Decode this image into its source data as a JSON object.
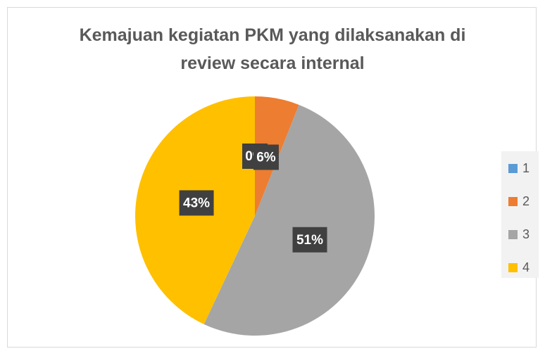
{
  "chart_data": {
    "type": "pie",
    "title": "Kemajuan kegiatan PKM yang dilaksanakan di review secara internal",
    "categories": [
      "1",
      "2",
      "3",
      "4"
    ],
    "values": [
      0,
      6,
      51,
      43
    ],
    "value_labels": [
      "0%",
      "6%",
      "51%",
      "43%"
    ],
    "colors": [
      "#5b9bd5",
      "#ed7d31",
      "#a5a5a5",
      "#ffc000"
    ],
    "legend": "right"
  }
}
